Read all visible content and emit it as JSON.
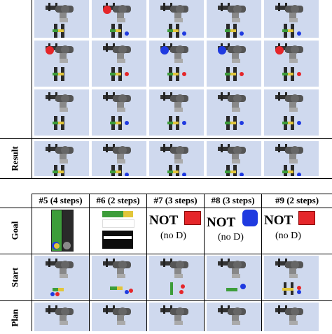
{
  "top_section": {
    "row_labels": [
      "Result"
    ]
  },
  "bottom_section": {
    "columns": [
      {
        "header": "#5 (4 steps)"
      },
      {
        "header": "#6 (2 steps)"
      },
      {
        "header": "#7 (3 steps)",
        "not_label": "NOT",
        "sub_label": "(no D)",
        "color": "#e5262a"
      },
      {
        "header": "#8 (3 steps)",
        "not_label": "NOT",
        "sub_label": "(no D)",
        "color": "#1f3ae0"
      },
      {
        "header": "#9 (2 steps)",
        "not_label": "NOT",
        "sub_label": "(no D)",
        "color": "#e5262a"
      }
    ],
    "row_labels": [
      "Goal",
      "Start",
      "Plan"
    ]
  },
  "colors": {
    "cell_bg": "#cfd9ee",
    "green": "#3d9d3a",
    "yellow": "#e2c63a",
    "red": "#e5262a",
    "blue": "#1f3ae0",
    "gray_robot": "#4a4a4a"
  }
}
